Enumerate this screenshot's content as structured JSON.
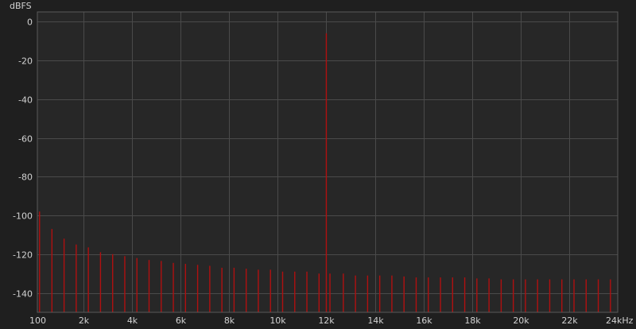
{
  "chart_data": {
    "type": "line",
    "title": "",
    "xlabel": "",
    "ylabel": "dBFS",
    "x_unit_label": "24kHz",
    "xlim": [
      100,
      24000
    ],
    "ylim": [
      -150,
      5
    ],
    "grid": true,
    "colors": {
      "background": "#1f1f1f",
      "plot_bg": "#272727",
      "grid": "#4a4a4a",
      "border": "#5a5a5a",
      "trace": "#b01010",
      "text": "#d2d2d2"
    },
    "x_ticks": [
      {
        "value": 100,
        "label": "100"
      },
      {
        "value": 2000,
        "label": "2k"
      },
      {
        "value": 4000,
        "label": "4k"
      },
      {
        "value": 6000,
        "label": "6k"
      },
      {
        "value": 8000,
        "label": "8k"
      },
      {
        "value": 10000,
        "label": "10k"
      },
      {
        "value": 12000,
        "label": "12k"
      },
      {
        "value": 14000,
        "label": "14k"
      },
      {
        "value": 16000,
        "label": "16k"
      },
      {
        "value": 18000,
        "label": "18k"
      },
      {
        "value": 20000,
        "label": "20k"
      },
      {
        "value": 22000,
        "label": "22k"
      }
    ],
    "y_ticks": [
      {
        "value": 0,
        "label": "0"
      },
      {
        "value": -20,
        "label": "-20"
      },
      {
        "value": -40,
        "label": "-40"
      },
      {
        "value": -60,
        "label": "-60"
      },
      {
        "value": -80,
        "label": "-80"
      },
      {
        "value": -100,
        "label": "-100"
      },
      {
        "value": -120,
        "label": "-120"
      },
      {
        "value": -140,
        "label": "-140"
      }
    ],
    "series": [
      {
        "points": [
          [
            190,
            -98
          ],
          [
            700,
            -107
          ],
          [
            1200,
            -112
          ],
          [
            1700,
            -115
          ],
          [
            2200,
            -116.5
          ],
          [
            2700,
            -119
          ],
          [
            3200,
            -120
          ],
          [
            3700,
            -121
          ],
          [
            4200,
            -122
          ],
          [
            4700,
            -123
          ],
          [
            5200,
            -123.5
          ],
          [
            5700,
            -124.5
          ],
          [
            6200,
            -125
          ],
          [
            6700,
            -125.5
          ],
          [
            7200,
            -126
          ],
          [
            7700,
            -127
          ],
          [
            8200,
            -127
          ],
          [
            8700,
            -127.5
          ],
          [
            9200,
            -128
          ],
          [
            9700,
            -128
          ],
          [
            10200,
            -129
          ],
          [
            10700,
            -129
          ],
          [
            11200,
            -129
          ],
          [
            11700,
            -130
          ],
          [
            12000,
            -6
          ],
          [
            12150,
            -130
          ],
          [
            12700,
            -130
          ],
          [
            13200,
            -131
          ],
          [
            13700,
            -131
          ],
          [
            14200,
            -131
          ],
          [
            14700,
            -131
          ],
          [
            15200,
            -131.5
          ],
          [
            15700,
            -132
          ],
          [
            16200,
            -132
          ],
          [
            16700,
            -132
          ],
          [
            17200,
            -132
          ],
          [
            17700,
            -132
          ],
          [
            18200,
            -132.5
          ],
          [
            18700,
            -132.5
          ],
          [
            19200,
            -133
          ],
          [
            19700,
            -133
          ],
          [
            20200,
            -133
          ],
          [
            20700,
            -133
          ],
          [
            21200,
            -133
          ],
          [
            21700,
            -133
          ],
          [
            22200,
            -133
          ],
          [
            22700,
            -133
          ],
          [
            23200,
            -133
          ],
          [
            23700,
            -133
          ]
        ]
      }
    ]
  }
}
